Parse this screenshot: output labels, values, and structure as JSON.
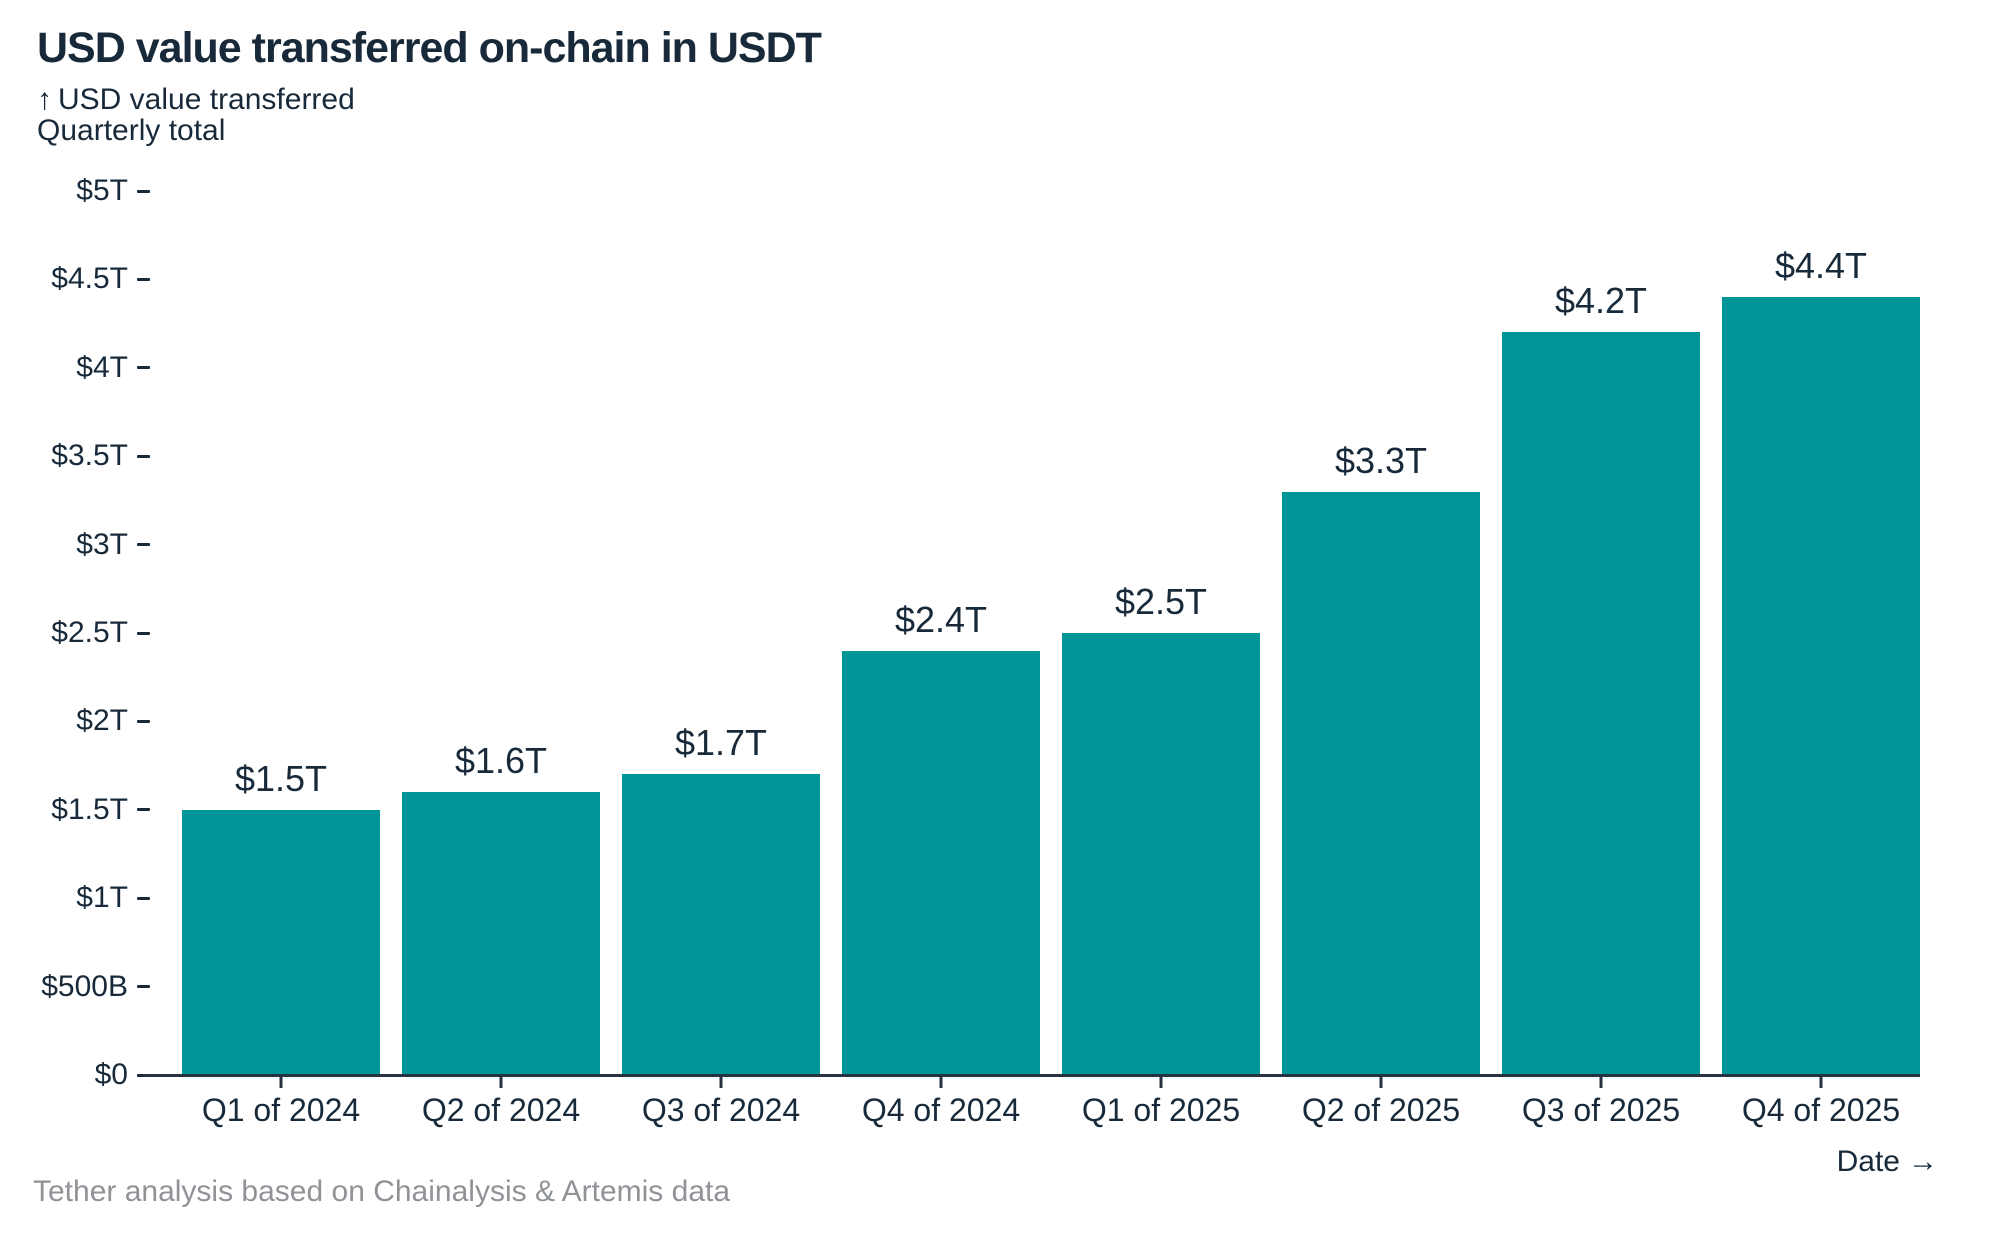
{
  "title": "USD value transferred on-chain in USDT",
  "y_axis_annotation": {
    "arrow": "↑",
    "line1": "USD value transferred",
    "line2": "Quarterly total"
  },
  "x_axis_annotation": {
    "label": "Date",
    "arrow": "→"
  },
  "footer": "Tether analysis based on Chainalysis & Artemis data",
  "colors": {
    "bar": "#009697",
    "text_dark": "#182a3a",
    "text_gray": "#8f9296",
    "axis": "#273340",
    "background": "#ffffff"
  },
  "chart_data": {
    "type": "bar",
    "title": "USD value transferred on-chain in USDT",
    "xlabel": "Date",
    "ylabel": "USD value transferred — Quarterly total",
    "unit": "USD trillions",
    "ylim": [
      0,
      5
    ],
    "grid": false,
    "legend": null,
    "categories": [
      "Q1 of 2024",
      "Q2 of 2024",
      "Q3 of 2024",
      "Q4 of 2024",
      "Q1 of 2025",
      "Q2 of 2025",
      "Q3 of 2025",
      "Q4 of 2025"
    ],
    "values": [
      1.5,
      1.6,
      1.7,
      2.4,
      2.5,
      3.3,
      4.2,
      4.4
    ],
    "value_labels": [
      "$1.5T",
      "$1.6T",
      "$1.7T",
      "$2.4T",
      "$2.5T",
      "$3.3T",
      "$4.2T",
      "$4.4T"
    ],
    "yticks": [
      {
        "label": "$0",
        "value": 0
      },
      {
        "label": "$500B",
        "value": 0.5
      },
      {
        "label": "$1T",
        "value": 1
      },
      {
        "label": "$1.5T",
        "value": 1.5
      },
      {
        "label": "$2T",
        "value": 2
      },
      {
        "label": "$2.5T",
        "value": 2.5
      },
      {
        "label": "$3T",
        "value": 3
      },
      {
        "label": "$3.5T",
        "value": 3.5
      },
      {
        "label": "$4T",
        "value": 4
      },
      {
        "label": "$4.5T",
        "value": 4.5
      },
      {
        "label": "$5T",
        "value": 5
      }
    ]
  }
}
